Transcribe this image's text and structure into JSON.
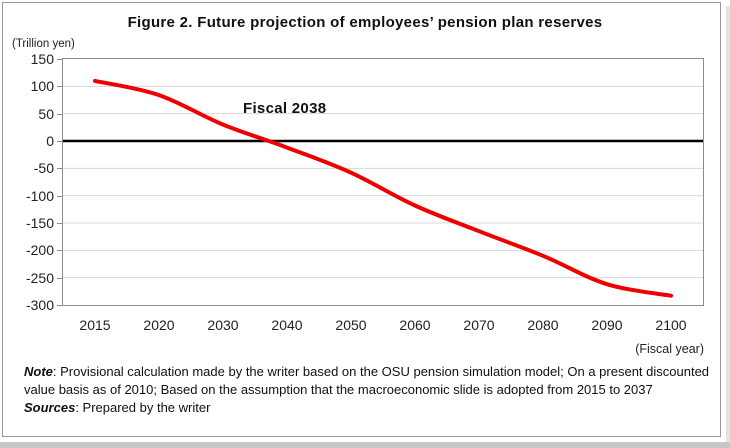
{
  "figure": {
    "title": "Figure 2. Future projection of employees’ pension plan reserves",
    "y_unit_label": "(Trillion yen)",
    "x_unit_label": "(Fiscal year)",
    "annotation": "Fiscal 2038",
    "note_label": "Note",
    "note_body": ": Provisional calculation made by the writer based on the OSU pension simulation model; On a present discounted value basis as of 2010; Based on the assumption that the macroeconomic slide is adopted from 2015 to 2037",
    "sources_label": "Sources",
    "sources_body": ": Prepared by the writer"
  },
  "chart_data": {
    "type": "line",
    "title": "Figure 2. Future projection of employees’ pension plan reserves",
    "categories": [
      "2015",
      "2020",
      "2030",
      "2040",
      "2050",
      "2060",
      "2070",
      "2080",
      "2090",
      "2100"
    ],
    "series": [
      {
        "name": "Employees' pension plan reserves",
        "values": [
          110,
          84,
          30,
          -12,
          -58,
          -118,
          -165,
          -210,
          -262,
          -283
        ]
      }
    ],
    "xlabel": "(Fiscal year)",
    "ylabel": "(Trillion yen)",
    "ylim": [
      -300,
      150
    ],
    "yticks": [
      150,
      100,
      50,
      0,
      -50,
      -100,
      -150,
      -200,
      -250,
      -300
    ],
    "grid": "horizontal",
    "legend": "none",
    "zero_line": true,
    "annotation": {
      "text": "Fiscal 2038",
      "meaning": "fiscal year when reserves cross zero"
    },
    "colors": {
      "line": "#ee0000",
      "zero_line": "#000000",
      "gridline": "#d8d8d8",
      "plot_border": "#8c8c8c",
      "text": "#1a1a1a"
    }
  }
}
